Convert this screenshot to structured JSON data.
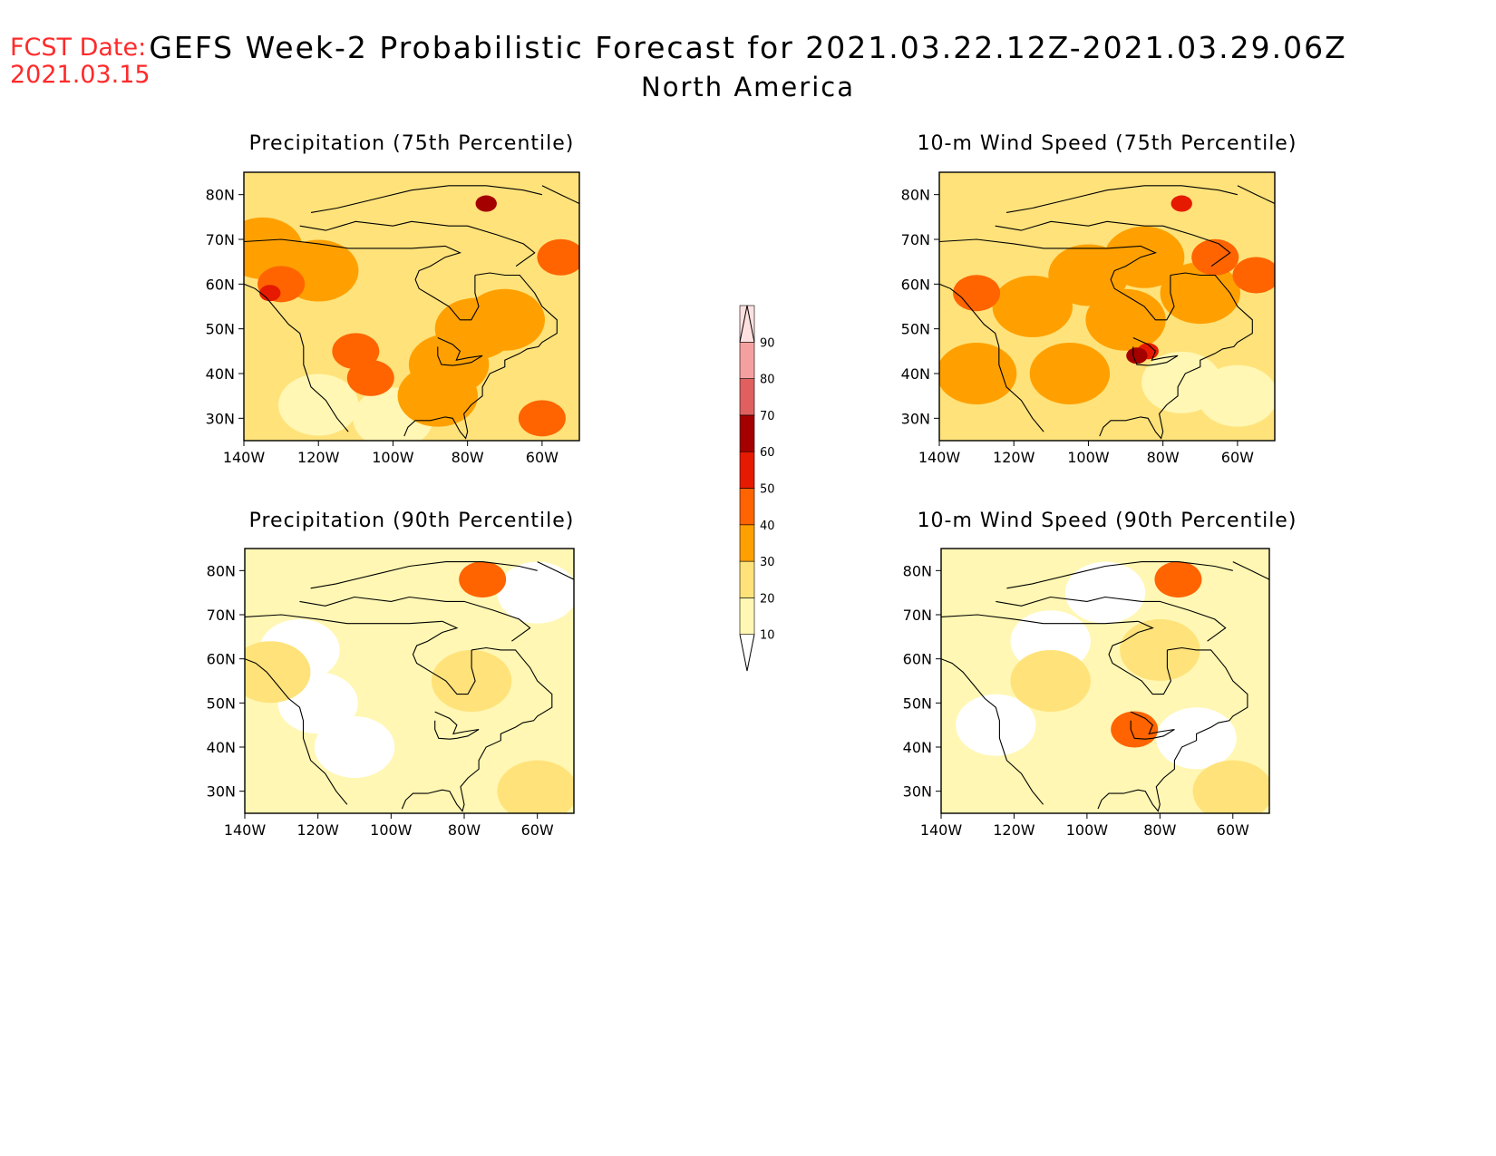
{
  "header": {
    "fcst_label": "FCST Date:",
    "fcst_date": "2021.03.15",
    "title": "GEFS Week-2 Probabilistic Forecast for 2021.03.22.12Z-2021.03.29.06Z",
    "subtitle": "North America"
  },
  "colors": {
    "bin_10_20": "#fff7b3",
    "bin_20_30": "#ffe27a",
    "bin_30_40": "#ffa000",
    "bin_40_50": "#ff6400",
    "bin_50_60": "#e61a00",
    "bin_60_70": "#a50000",
    "bin_70_80": "#e06060",
    "bin_80_90": "#f5a0a0",
    "bin_90_100": "#ffe0e0"
  },
  "chart_data": [
    {
      "type": "heatmap",
      "title": "Precipitation (75th Percentile)",
      "x_ticks": [
        "140W",
        "120W",
        "100W",
        "80W",
        "60W"
      ],
      "y_ticks": [
        "30N",
        "40N",
        "50N",
        "60N",
        "70N",
        "80N"
      ],
      "xlim": [
        -140,
        -50
      ],
      "ylim": [
        25,
        85
      ],
      "base_level": 20,
      "blobs": [
        {
          "lon": -85,
          "lat": 42,
          "level": 30
        },
        {
          "lon": -78,
          "lat": 50,
          "level": 30
        },
        {
          "lon": -70,
          "lat": 52,
          "level": 30
        },
        {
          "lon": -88,
          "lat": 35,
          "level": 30
        },
        {
          "lon": -60,
          "lat": 30,
          "level": 40
        },
        {
          "lon": -130,
          "lat": 60,
          "level": 40
        },
        {
          "lon": -133,
          "lat": 58,
          "level": 50
        },
        {
          "lon": -120,
          "lat": 63,
          "level": 30
        },
        {
          "lon": -110,
          "lat": 45,
          "level": 40
        },
        {
          "lon": -106,
          "lat": 39,
          "level": 40
        },
        {
          "lon": -75,
          "lat": 78,
          "level": 60
        },
        {
          "lon": -55,
          "lat": 66,
          "level": 40
        },
        {
          "lon": -135,
          "lat": 68,
          "level": 30
        },
        {
          "lon": -100,
          "lat": 30,
          "level": 10
        },
        {
          "lon": -120,
          "lat": 33,
          "level": 10
        }
      ]
    },
    {
      "type": "heatmap",
      "title": "10-m Wind Speed (75th Percentile)",
      "x_ticks": [
        "140W",
        "120W",
        "100W",
        "80W",
        "60W"
      ],
      "y_ticks": [
        "30N",
        "40N",
        "50N",
        "60N",
        "70N",
        "80N"
      ],
      "xlim": [
        -140,
        -50
      ],
      "ylim": [
        25,
        85
      ],
      "base_level": 20,
      "blobs": [
        {
          "lon": -100,
          "lat": 62,
          "level": 30
        },
        {
          "lon": -115,
          "lat": 55,
          "level": 30
        },
        {
          "lon": -90,
          "lat": 52,
          "level": 30
        },
        {
          "lon": -85,
          "lat": 66,
          "level": 30
        },
        {
          "lon": -70,
          "lat": 58,
          "level": 30
        },
        {
          "lon": -87,
          "lat": 44,
          "level": 60
        },
        {
          "lon": -84,
          "lat": 45,
          "level": 50
        },
        {
          "lon": -75,
          "lat": 78,
          "level": 50
        },
        {
          "lon": -55,
          "lat": 62,
          "level": 40
        },
        {
          "lon": -130,
          "lat": 58,
          "level": 40
        },
        {
          "lon": -66,
          "lat": 66,
          "level": 40
        },
        {
          "lon": -130,
          "lat": 40,
          "level": 30
        },
        {
          "lon": -105,
          "lat": 40,
          "level": 30
        },
        {
          "lon": -60,
          "lat": 35,
          "level": 10
        },
        {
          "lon": -75,
          "lat": 38,
          "level": 10
        }
      ]
    },
    {
      "type": "heatmap",
      "title": "Precipitation (90th Percentile)",
      "x_ticks": [
        "140W",
        "120W",
        "100W",
        "80W",
        "60W"
      ],
      "y_ticks": [
        "30N",
        "40N",
        "50N",
        "60N",
        "70N",
        "80N"
      ],
      "xlim": [
        -140,
        -50
      ],
      "ylim": [
        25,
        85
      ],
      "base_level": 10,
      "blobs": [
        {
          "lon": -120,
          "lat": 50,
          "level": 0
        },
        {
          "lon": -110,
          "lat": 40,
          "level": 0
        },
        {
          "lon": -125,
          "lat": 62,
          "level": 0
        },
        {
          "lon": -60,
          "lat": 75,
          "level": 0
        },
        {
          "lon": -60,
          "lat": 30,
          "level": 20
        },
        {
          "lon": -75,
          "lat": 78,
          "level": 40
        },
        {
          "lon": -133,
          "lat": 57,
          "level": 20
        },
        {
          "lon": -78,
          "lat": 55,
          "level": 20
        }
      ]
    },
    {
      "type": "heatmap",
      "title": "10-m Wind Speed (90th Percentile)",
      "x_ticks": [
        "140W",
        "120W",
        "100W",
        "80W",
        "60W"
      ],
      "y_ticks": [
        "30N",
        "40N",
        "50N",
        "60N",
        "70N",
        "80N"
      ],
      "xlim": [
        -140,
        -50
      ],
      "ylim": [
        25,
        85
      ],
      "base_level": 10,
      "blobs": [
        {
          "lon": -125,
          "lat": 45,
          "level": 0
        },
        {
          "lon": -70,
          "lat": 42,
          "level": 0
        },
        {
          "lon": -95,
          "lat": 75,
          "level": 0
        },
        {
          "lon": -110,
          "lat": 64,
          "level": 0
        },
        {
          "lon": -87,
          "lat": 44,
          "level": 40
        },
        {
          "lon": -75,
          "lat": 78,
          "level": 40
        },
        {
          "lon": -110,
          "lat": 55,
          "level": 20
        },
        {
          "lon": -80,
          "lat": 62,
          "level": 20
        },
        {
          "lon": -60,
          "lat": 30,
          "level": 20
        }
      ]
    }
  ],
  "colorbar": {
    "labels": [
      "10",
      "20",
      "30",
      "40",
      "50",
      "60",
      "70",
      "80",
      "90"
    ]
  }
}
